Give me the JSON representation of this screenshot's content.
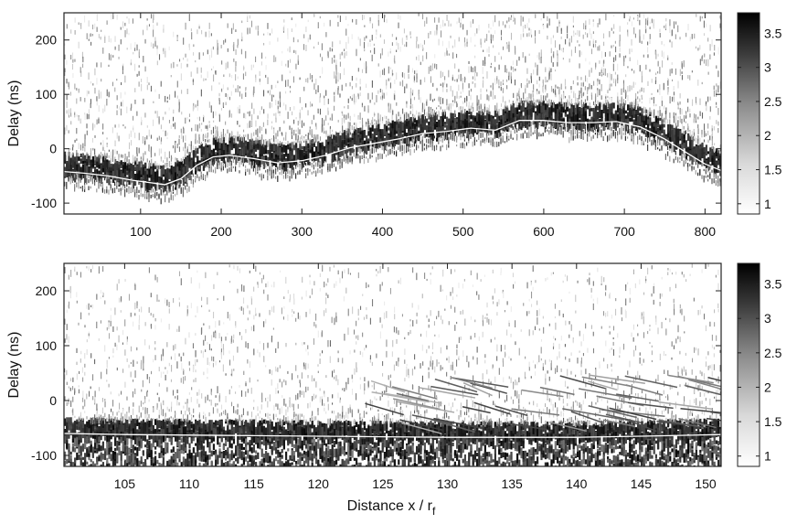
{
  "chart_data": [
    {
      "type": "heatmap",
      "title": "",
      "xlabel": "",
      "ylabel": "Delay (ns)",
      "xlim": [
        5,
        820
      ],
      "ylim": [
        -120,
        250
      ],
      "xticks": [
        100,
        200,
        300,
        400,
        500,
        600,
        700,
        800
      ],
      "yticks": [
        -100,
        0,
        100,
        200
      ],
      "colorscale": "grayscale (white = low, black = high)",
      "colorbar": {
        "range": [
          0.85,
          3.8
        ],
        "ticks": [
          1,
          1.5,
          2,
          2.5,
          3,
          3.5
        ]
      },
      "series": [
        {
          "x": [
            5,
            30,
            60,
            90,
            110,
            130,
            150,
            170,
            190,
            210,
            240,
            270,
            300,
            330,
            360,
            390,
            420,
            450,
            480,
            510,
            540,
            570,
            600,
            630,
            660,
            690,
            720,
            750,
            780,
            800,
            820
          ],
          "y": [
            -42,
            -45,
            -50,
            -58,
            -62,
            -66,
            -55,
            -30,
            -15,
            -12,
            -18,
            -26,
            -22,
            -12,
            2,
            10,
            18,
            28,
            32,
            38,
            34,
            52,
            52,
            48,
            48,
            50,
            40,
            18,
            -10,
            -28,
            -40
          ]
        }
      ]
    },
    {
      "type": "heatmap",
      "title": "",
      "xlabel": "Distance x / r",
      "xlabel_subscript": "f",
      "ylabel": "Delay (ns)",
      "xlim": [
        100.3,
        151.2
      ],
      "ylim": [
        -120,
        250
      ],
      "xticks": [
        105,
        110,
        115,
        120,
        125,
        130,
        135,
        140,
        145,
        150
      ],
      "yticks": [
        -100,
        0,
        100,
        200
      ],
      "colorscale": "grayscale (white = low, black = high)",
      "colorbar": {
        "range": [
          0.85,
          3.8
        ],
        "ticks": [
          1,
          1.5,
          2,
          2.5,
          3,
          3.5
        ]
      },
      "series": [
        {
          "x": [
            100.3,
            105,
            110,
            115,
            120,
            125,
            130,
            135,
            140,
            145,
            151.2
          ],
          "y": [
            -60,
            -62,
            -63,
            -64,
            -65,
            -66,
            -67,
            -67,
            -67,
            -65,
            -62
          ]
        }
      ]
    }
  ]
}
